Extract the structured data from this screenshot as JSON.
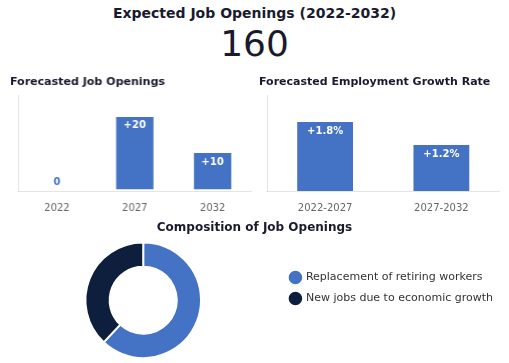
{
  "title": "Expected Job Openings (2022-2032)",
  "subtitle": "160",
  "chart_data": [
    {
      "type": "bar",
      "title": "Forecasted Job Openings",
      "categories": [
        "2022",
        "2027",
        "2032"
      ],
      "values": [
        0,
        20,
        10
      ],
      "value_labels": [
        "0",
        "+20",
        "+10"
      ],
      "color": "#4472C4",
      "ylim": [
        -0.5,
        26
      ],
      "grid": false,
      "tick_labels": "x",
      "data_labels": true
    },
    {
      "type": "bar",
      "title": "Forecasted Employment Growth Rate",
      "categories": [
        "2022-2027",
        "2027-2032"
      ],
      "values": [
        1.8,
        1.2
      ],
      "value_labels": [
        "+1.8%",
        "+1.2%"
      ],
      "color": "#4472C4",
      "ylim": [
        0,
        2.5
      ],
      "grid": false,
      "tick_labels": "x",
      "data_labels": true
    },
    {
      "type": "donut",
      "title": "Composition of Job Openings",
      "categories": [
        "Replacement of retiring workers",
        "New jobs due to economic growth"
      ],
      "values": [
        62,
        38
      ],
      "colors": [
        "#4472C4",
        "#0d1f3c"
      ],
      "legend": "right"
    }
  ]
}
